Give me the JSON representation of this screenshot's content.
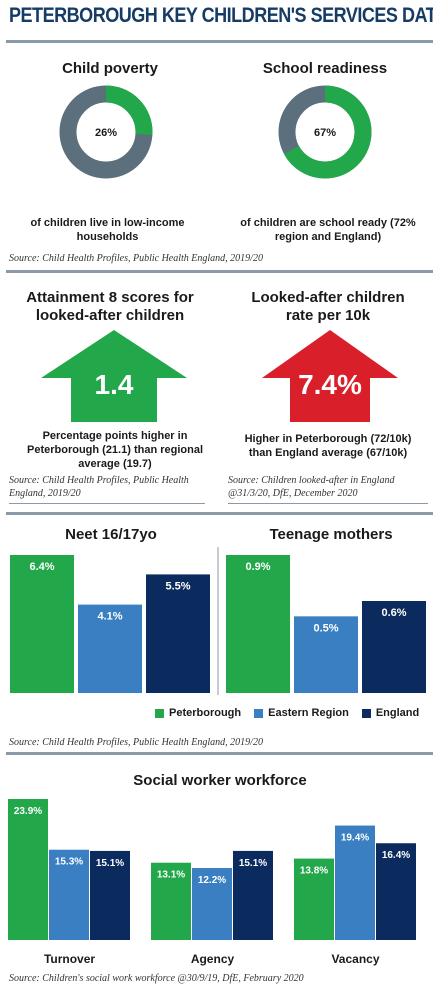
{
  "title": "PETERBOROUGH KEY CHILDREN'S SERVICES DATA",
  "colors": {
    "peterborough": "#22a84a",
    "eastern": "#3a7fc1",
    "england": "#0b2a5e",
    "grey": "#5c6f7c",
    "red": "#d81f2a",
    "navy_title": "#163c66"
  },
  "poverty": {
    "heading": "Child poverty",
    "value_label": "26%",
    "caption": "of children live in low-income households"
  },
  "readiness": {
    "heading": "School readiness",
    "value_label": "67%",
    "caption": "of children are school ready (72% region and England)"
  },
  "source1": "Source: Child Health Profiles, Public Health England, 2019/20",
  "attainment": {
    "heading": "Attainment 8 scores for looked-after children",
    "value_label": "1.4",
    "caption": "Percentage points higher in Peterborough (21.1) than regional average (19.7)",
    "source": "Source: Child Health Profiles, Public Health England, 2019/20"
  },
  "lookedafter": {
    "heading": "Looked-after children rate per 10k",
    "value_label": "7.4%",
    "caption": "Higher in Peterborough (72/10k) than England average (67/10k)",
    "source": "Source: Children looked-after in England @31/3/20, DfE, December 2020"
  },
  "legend": {
    "peterborough": "Peterborough",
    "eastern": "Eastern Region",
    "england": "England"
  },
  "source_mid": "Source: Child Health Profiles, Public Health England, 2019/20",
  "workforce_heading": "Social worker workforce",
  "source_bottom": "Source: Children's social work workforce @30/9/19, DfE, February 2020",
  "chart_data": [
    {
      "type": "pie",
      "title": "Child poverty",
      "categories": [
        "Low-income households",
        "Other"
      ],
      "values": [
        26,
        74
      ]
    },
    {
      "type": "pie",
      "title": "School readiness",
      "categories": [
        "School ready",
        "Other"
      ],
      "values": [
        67,
        33
      ]
    },
    {
      "type": "bar",
      "title": "Neet 16/17yo",
      "categories": [
        "Peterborough",
        "Eastern Region",
        "England"
      ],
      "values": [
        6.4,
        4.1,
        5.5
      ],
      "labels": [
        "6.4%",
        "4.1%",
        "5.5%"
      ],
      "ylim": [
        0,
        6.4
      ]
    },
    {
      "type": "bar",
      "title": "Teenage mothers",
      "categories": [
        "Peterborough",
        "Eastern Region",
        "England"
      ],
      "values": [
        0.9,
        0.5,
        0.6
      ],
      "labels": [
        "0.9%",
        "0.5%",
        "0.6%"
      ],
      "ylim": [
        0,
        0.9
      ]
    },
    {
      "type": "bar",
      "title": "Social worker workforce",
      "categories": [
        "Turnover",
        "Agency",
        "Vacancy"
      ],
      "series": [
        {
          "name": "Peterborough",
          "values": [
            23.9,
            13.1,
            13.8
          ],
          "labels": [
            "23.9%",
            "13.1%",
            "13.8%"
          ]
        },
        {
          "name": "Eastern Region",
          "values": [
            15.3,
            12.2,
            19.4
          ],
          "labels": [
            "15.3%",
            "12.2%",
            "19.4%"
          ]
        },
        {
          "name": "England",
          "values": [
            15.1,
            15.1,
            16.4
          ],
          "labels": [
            "15.1%",
            "15.1%",
            "16.4%"
          ]
        }
      ],
      "ylim": [
        0,
        23.9
      ]
    }
  ]
}
